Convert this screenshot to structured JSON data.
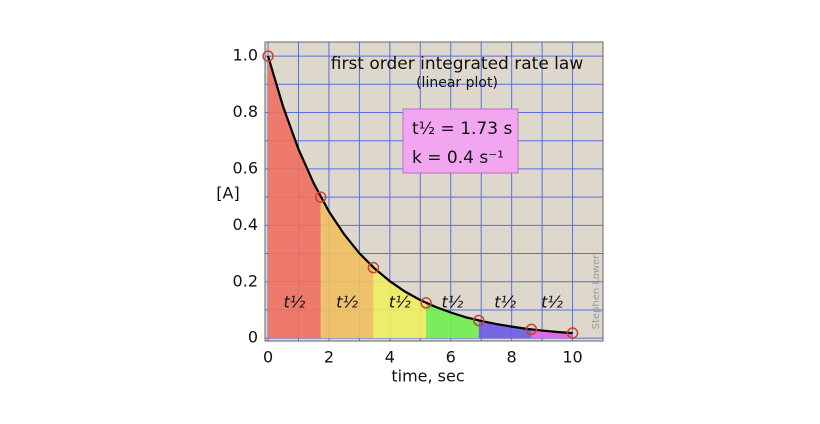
{
  "chart_data": {
    "type": "decay",
    "title": "first order integrated rate law",
    "subtitle": "(linear plot)",
    "x_label": "time, sec",
    "y_label": "[A]",
    "annotation": [
      "t½ = 1.73 s",
      "k = 0.4 s⁻¹"
    ],
    "credit": "Stephen Lower",
    "xlim": [
      -0.1,
      11.0
    ],
    "ylim": [
      -0.01,
      1.05
    ],
    "xticks": [
      0,
      2,
      4,
      6,
      8,
      10
    ],
    "yticks": [
      0,
      {
        "value": 0.2,
        "label": "0.2"
      },
      {
        "value": 0.4,
        "label": "0.4"
      },
      {
        "value": 0.6,
        "label": "0.6"
      },
      {
        "value": 0.8,
        "label": "0.8"
      },
      {
        "value": 1,
        "label": "1.0"
      }
    ],
    "grid": true,
    "grid_color": "#5b6fe0",
    "background": "#ddd8cb",
    "curve": {
      "color": "#000000",
      "x": [
        0,
        0.5,
        1,
        1.5,
        2,
        2.5,
        3,
        3.5,
        4,
        4.5,
        5,
        5.5,
        6,
        6.5,
        7,
        7.5,
        8,
        8.5,
        9,
        9.5,
        10
      ],
      "values": [
        1,
        0.819,
        0.67,
        0.549,
        0.449,
        0.368,
        0.301,
        0.247,
        0.202,
        0.165,
        0.135,
        0.111,
        0.091,
        0.074,
        0.061,
        0.05,
        0.041,
        0.033,
        0.027,
        0.022,
        0.018
      ]
    },
    "points": {
      "color": "#d04030",
      "x": [
        0,
        1.73,
        3.46,
        5.19,
        6.92,
        8.65,
        10
      ],
      "values": [
        1,
        0.5,
        0.25,
        0.125,
        0.0625,
        0.0313,
        0.0183
      ]
    },
    "bands": [
      {
        "from": 0,
        "to": 1.73,
        "color": "#f07060",
        "label": "t½"
      },
      {
        "from": 1.73,
        "to": 3.46,
        "color": "#f0c060",
        "label": "t½"
      },
      {
        "from": 3.46,
        "to": 5.19,
        "color": "#eef060",
        "label": "t½"
      },
      {
        "from": 5.19,
        "to": 6.92,
        "color": "#70ee50",
        "label": "t½"
      },
      {
        "from": 6.92,
        "to": 8.65,
        "color": "#6a5ce8",
        "label": "t½"
      },
      {
        "from": 8.65,
        "to": 10,
        "color": "#e060e0",
        "label": "t½"
      }
    ]
  }
}
